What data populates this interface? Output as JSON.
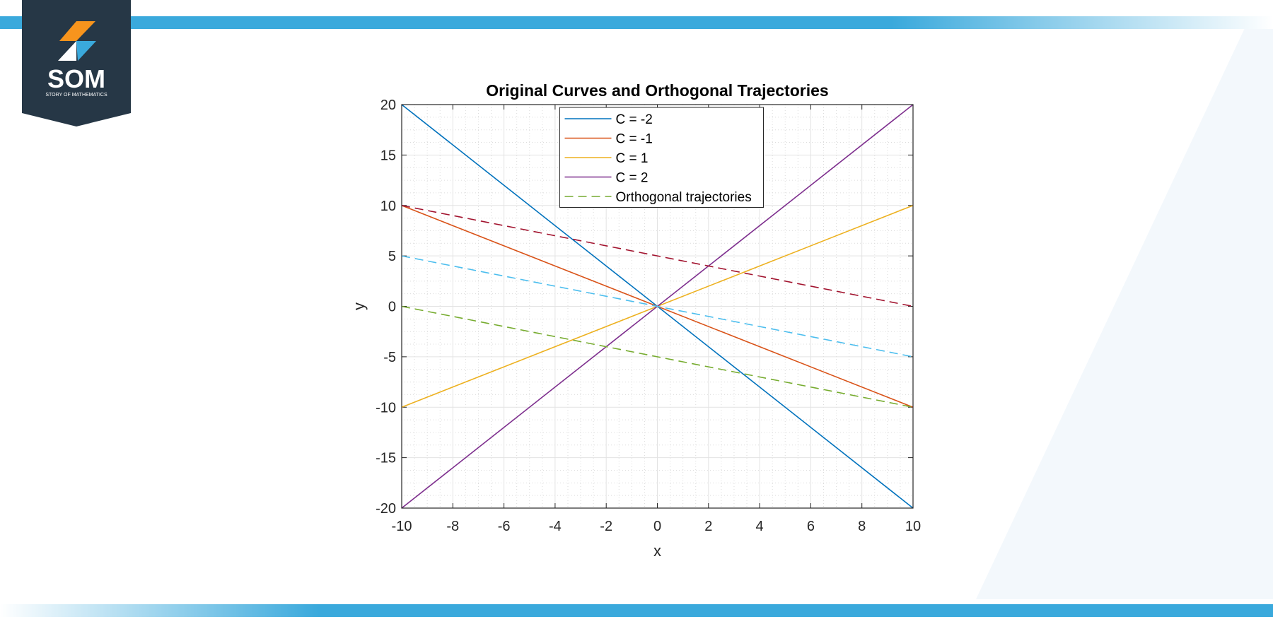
{
  "logo": {
    "title": "SOM",
    "subtitle": "STORY OF MATHEMATICS"
  },
  "chart_data": {
    "type": "line",
    "title": "Original Curves and Orthogonal Trajectories",
    "x_label": "x",
    "y_label": "y",
    "x": [
      -10,
      10
    ],
    "series": [
      {
        "name": "C = -2",
        "color": "#0072BD",
        "linestyle": "-",
        "values": [
          20,
          -20
        ]
      },
      {
        "name": "C = -1",
        "color": "#D95319",
        "linestyle": "-",
        "values": [
          10,
          -10
        ]
      },
      {
        "name": "C = 1",
        "color": "#EDB120",
        "linestyle": "-",
        "values": [
          -10,
          10
        ]
      },
      {
        "name": "C = 2",
        "color": "#7E2F8E",
        "linestyle": "-",
        "values": [
          -20,
          20
        ]
      },
      {
        "name": "Orthogonal trajectories",
        "color": "#77AC30",
        "linestyle": "--",
        "values": [
          0,
          -10
        ]
      },
      {
        "color": "#4DBEEE",
        "linestyle": "--",
        "values": [
          5,
          -5
        ]
      },
      {
        "color": "#A2142F",
        "linestyle": "--",
        "values": [
          10,
          0
        ]
      }
    ],
    "xlim": [
      -10,
      10
    ],
    "ylim": [
      -20,
      20
    ],
    "xticks": [
      -10,
      -8,
      -6,
      -4,
      -2,
      0,
      2,
      4,
      6,
      8,
      10
    ],
    "yticks": [
      -20,
      -15,
      -10,
      -5,
      0,
      5,
      10,
      15,
      20
    ],
    "grid": true,
    "minor_grid": true,
    "legend": "top"
  }
}
